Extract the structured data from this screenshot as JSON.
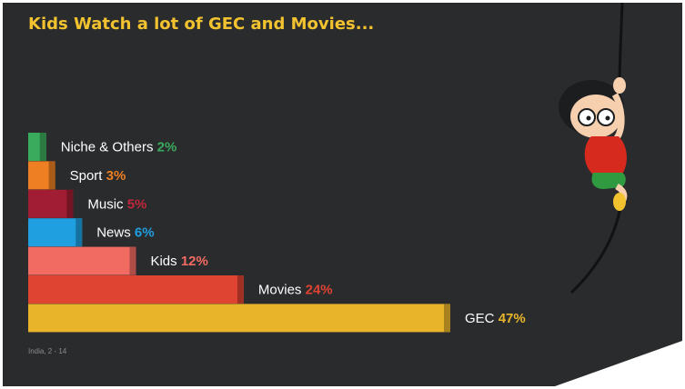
{
  "slide": {
    "title": "Kids Watch a lot of GEC and Movies...",
    "source": "India, 2 - 14"
  },
  "colors": {
    "background": "#2a2b2d",
    "title": "#f2c32f",
    "label": "#ffffff",
    "source": "#8a8b8d",
    "accent_dark": "#1c1d1f"
  },
  "illustration": {
    "description_icon": "boy-climbing-rope-illustration"
  },
  "chart_data": {
    "type": "bar",
    "orientation": "horizontal",
    "title": "Kids Watch a lot of GEC and Movies...",
    "categories": [
      "Niche & Others",
      "Sport",
      "Music",
      "News",
      "Kids",
      "Movies",
      "GEC"
    ],
    "values": [
      2,
      3,
      5,
      6,
      12,
      24,
      47
    ],
    "value_labels": [
      "2%",
      "3%",
      "5%",
      "6%",
      "12%",
      "24%",
      "47%"
    ],
    "unit": "%",
    "xlim": [
      0,
      47
    ],
    "grid": false,
    "legend": "none",
    "bar_colors": [
      "#3aaa5c",
      "#ee7f22",
      "#a11d33",
      "#1f9fe0",
      "#f26b63",
      "#df4332",
      "#e8b52a"
    ],
    "value_label_colors": [
      "#3aaa5c",
      "#ee7f22",
      "#c2263a",
      "#1f9fe0",
      "#f26b63",
      "#df4332",
      "#e8b52a"
    ]
  }
}
